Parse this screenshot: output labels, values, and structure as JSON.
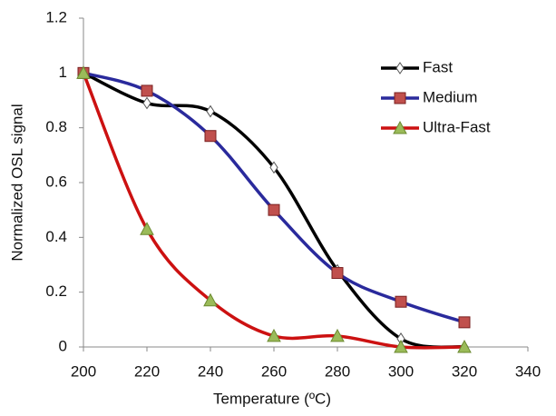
{
  "chart_data": {
    "type": "line",
    "x_label": "Temperature (ºC)",
    "y_label": "Normalized OSL signal",
    "x": [
      200,
      220,
      240,
      260,
      280,
      300,
      320
    ],
    "series": [
      {
        "name": "Fast",
        "color": "#000000",
        "marker": "diamond",
        "marker_fill": "#ffffff",
        "values": [
          1.0,
          0.89,
          0.86,
          0.655,
          0.28,
          0.03,
          0.0
        ]
      },
      {
        "name": "Medium",
        "color": "#2a2a9c",
        "marker": "square",
        "marker_fill": "#c0504d",
        "values": [
          1.0,
          0.935,
          0.77,
          0.5,
          0.27,
          0.165,
          0.09
        ]
      },
      {
        "name": "Ultra-Fast",
        "color": "#cc1111",
        "marker": "triangle",
        "marker_fill": "#9bbb59",
        "values": [
          1.0,
          0.43,
          0.17,
          0.04,
          0.04,
          0.0,
          0.0
        ]
      }
    ],
    "xlim": [
      200,
      340
    ],
    "xticks": [
      200,
      220,
      240,
      260,
      280,
      300,
      320,
      340
    ],
    "ylim": [
      0,
      1.2
    ],
    "yticks": [
      0,
      0.2,
      0.4,
      0.6,
      0.8,
      1,
      1.2
    ],
    "grid": false,
    "legend": "upper right"
  }
}
